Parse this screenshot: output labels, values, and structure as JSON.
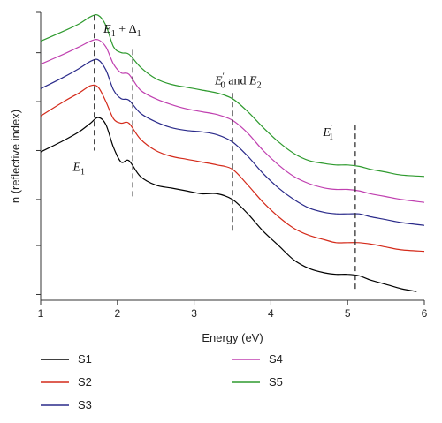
{
  "chart_data": {
    "type": "line",
    "title": "",
    "xlabel": "Energy (eV)",
    "ylabel": "n (reflective index)",
    "xlim": [
      1,
      6
    ],
    "ylim": [
      0,
      1
    ],
    "x_ticks": [
      "1",
      "2",
      "3",
      "4",
      "5",
      "6"
    ],
    "y_ticks_labeled": false,
    "grid": false,
    "legend": "bottom",
    "annotations": [
      {
        "text": "E1",
        "x": 1.7
      },
      {
        "text": "E1 + Δ1",
        "x": 2.2
      },
      {
        "text": "E'0 and E2",
        "x": 3.5
      },
      {
        "text": "E'1",
        "x": 5.1
      }
    ],
    "series": [
      {
        "name": "S1",
        "color": "#000000",
        "x": [
          1,
          1.3,
          1.5,
          1.65,
          1.75,
          1.85,
          1.95,
          2.05,
          2.15,
          2.3,
          2.5,
          2.7,
          2.9,
          3.1,
          3.3,
          3.5,
          3.7,
          3.9,
          4.1,
          4.3,
          4.5,
          4.7,
          4.85,
          5.0,
          5.15,
          5.3,
          5.5,
          5.7,
          5.9
        ],
        "y": [
          0.515,
          0.555,
          0.585,
          0.615,
          0.635,
          0.61,
          0.53,
          0.48,
          0.485,
          0.43,
          0.4,
          0.39,
          0.38,
          0.37,
          0.37,
          0.35,
          0.3,
          0.24,
          0.19,
          0.14,
          0.11,
          0.095,
          0.09,
          0.09,
          0.085,
          0.07,
          0.055,
          0.04,
          0.03
        ]
      },
      {
        "name": "S2",
        "color": "#d42a1a",
        "x": [
          1,
          1.3,
          1.5,
          1.65,
          1.75,
          1.85,
          1.95,
          2.05,
          2.15,
          2.3,
          2.5,
          2.7,
          2.9,
          3.1,
          3.3,
          3.5,
          3.7,
          3.9,
          4.1,
          4.3,
          4.5,
          4.7,
          4.85,
          5.0,
          5.15,
          5.3,
          5.5,
          5.7,
          6.0
        ],
        "y": [
          0.64,
          0.69,
          0.72,
          0.745,
          0.74,
          0.69,
          0.63,
          0.615,
          0.615,
          0.56,
          0.52,
          0.5,
          0.49,
          0.48,
          0.47,
          0.455,
          0.4,
          0.34,
          0.29,
          0.25,
          0.225,
          0.21,
          0.2,
          0.2,
          0.2,
          0.195,
          0.185,
          0.175,
          0.17
        ]
      },
      {
        "name": "S3",
        "color": "#2a2a8a",
        "x": [
          1,
          1.3,
          1.5,
          1.65,
          1.75,
          1.85,
          1.95,
          2.05,
          2.15,
          2.3,
          2.5,
          2.7,
          2.9,
          3.1,
          3.3,
          3.5,
          3.7,
          3.9,
          4.1,
          4.3,
          4.5,
          4.7,
          4.85,
          5.0,
          5.15,
          5.3,
          5.5,
          5.7,
          6.0
        ],
        "y": [
          0.735,
          0.775,
          0.805,
          0.83,
          0.835,
          0.8,
          0.73,
          0.7,
          0.695,
          0.65,
          0.62,
          0.6,
          0.59,
          0.585,
          0.575,
          0.55,
          0.5,
          0.44,
          0.39,
          0.35,
          0.32,
          0.305,
          0.3,
          0.3,
          0.3,
          0.29,
          0.28,
          0.27,
          0.26
        ]
      },
      {
        "name": "S4",
        "color": "#c040b0",
        "x": [
          1,
          1.3,
          1.5,
          1.65,
          1.75,
          1.85,
          1.95,
          2.05,
          2.15,
          2.3,
          2.5,
          2.7,
          2.9,
          3.1,
          3.3,
          3.5,
          3.7,
          3.9,
          4.1,
          4.3,
          4.5,
          4.7,
          4.85,
          5.0,
          5.15,
          5.3,
          5.5,
          5.7,
          6.0
        ],
        "y": [
          0.82,
          0.855,
          0.88,
          0.9,
          0.905,
          0.88,
          0.82,
          0.79,
          0.785,
          0.73,
          0.7,
          0.68,
          0.665,
          0.655,
          0.645,
          0.625,
          0.58,
          0.52,
          0.47,
          0.43,
          0.405,
          0.39,
          0.385,
          0.385,
          0.38,
          0.37,
          0.36,
          0.35,
          0.34
        ]
      },
      {
        "name": "S5",
        "color": "#2e9a2e",
        "x": [
          1,
          1.3,
          1.5,
          1.65,
          1.75,
          1.85,
          1.95,
          2.05,
          2.15,
          2.3,
          2.5,
          2.7,
          2.9,
          3.1,
          3.3,
          3.5,
          3.7,
          3.9,
          4.1,
          4.3,
          4.5,
          4.7,
          4.85,
          5.0,
          5.15,
          5.3,
          5.5,
          5.7,
          6.0
        ],
        "y": [
          0.9,
          0.935,
          0.96,
          0.985,
          0.99,
          0.955,
          0.88,
          0.86,
          0.855,
          0.81,
          0.77,
          0.75,
          0.74,
          0.73,
          0.72,
          0.7,
          0.655,
          0.6,
          0.55,
          0.51,
          0.485,
          0.475,
          0.47,
          0.47,
          0.465,
          0.455,
          0.445,
          0.435,
          0.43
        ]
      }
    ]
  }
}
